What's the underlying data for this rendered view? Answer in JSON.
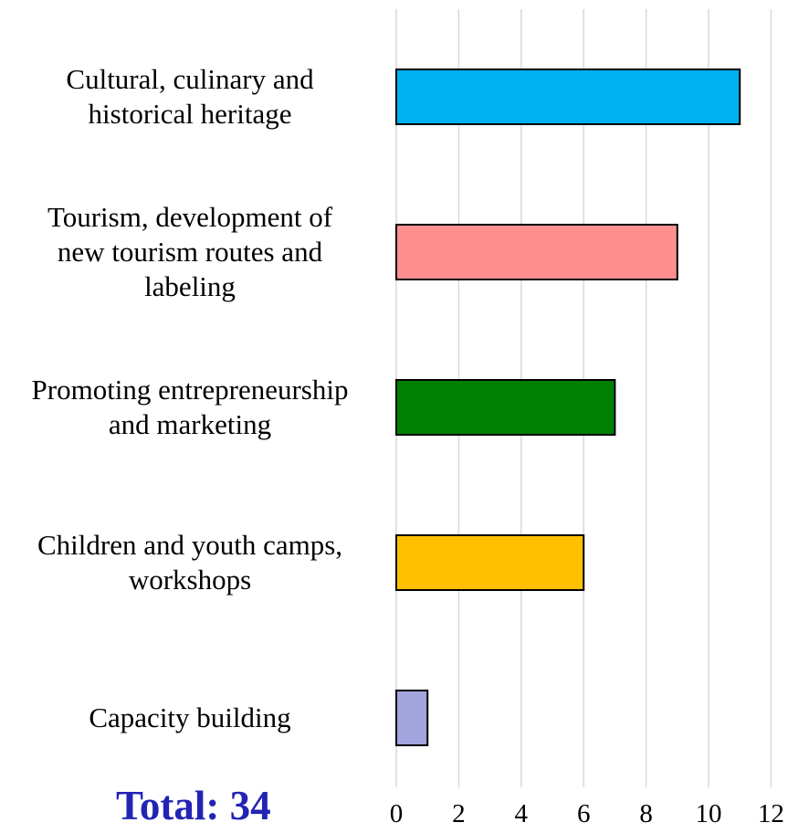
{
  "chart_data": {
    "type": "bar",
    "orientation": "horizontal",
    "categories": [
      [
        "Cultural, culinary and",
        "historical heritage"
      ],
      [
        "Tourism, development of",
        "new tourism routes and",
        "labeling"
      ],
      [
        "Promoting entrepreneurship",
        "and marketing"
      ],
      [
        "Children and youth camps,",
        "workshops"
      ],
      [
        "Capacity building"
      ]
    ],
    "values": [
      11,
      9,
      7,
      6,
      1
    ],
    "bar_colors": [
      "#00B0F0",
      "#FF8F8F",
      "#008000",
      "#FFC000",
      "#A3A3DE"
    ],
    "xlim": [
      0,
      12
    ],
    "xticks": [
      "0",
      "2",
      "4",
      "6",
      "8",
      "10",
      "12"
    ],
    "grid": "vertical",
    "legend": "none",
    "title": "",
    "xlabel": "",
    "ylabel": ""
  },
  "total": {
    "text": "Total: 34",
    "color": "#2323B4"
  }
}
